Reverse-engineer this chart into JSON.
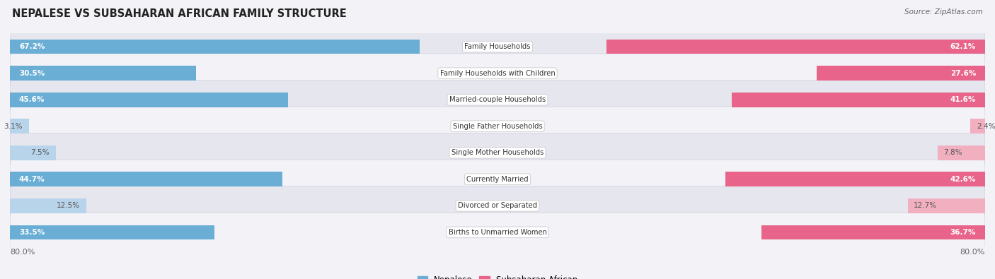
{
  "title": "NEPALESE VS SUBSAHARAN AFRICAN FAMILY STRUCTURE",
  "source": "Source: ZipAtlas.com",
  "categories": [
    "Family Households",
    "Family Households with Children",
    "Married-couple Households",
    "Single Father Households",
    "Single Mother Households",
    "Currently Married",
    "Divorced or Separated",
    "Births to Unmarried Women"
  ],
  "nepalese_values": [
    67.2,
    30.5,
    45.6,
    3.1,
    7.5,
    44.7,
    12.5,
    33.5
  ],
  "subsaharan_values": [
    62.1,
    27.6,
    41.6,
    2.4,
    7.8,
    42.6,
    12.7,
    36.7
  ],
  "nepalese_color_dark": "#6aaed6",
  "nepalese_color_light": "#b8d4ea",
  "subsaharan_color_dark": "#e8648a",
  "subsaharan_color_light": "#f2afc0",
  "background_color": "#f2f2f7",
  "row_bg_colors": [
    "#e6e6ef",
    "#f2f2f7"
  ],
  "axis_limit": 80.0,
  "dark_threshold": 20.0,
  "legend_nepalese": "Nepalese",
  "legend_subsaharan": "Subsaharan African"
}
